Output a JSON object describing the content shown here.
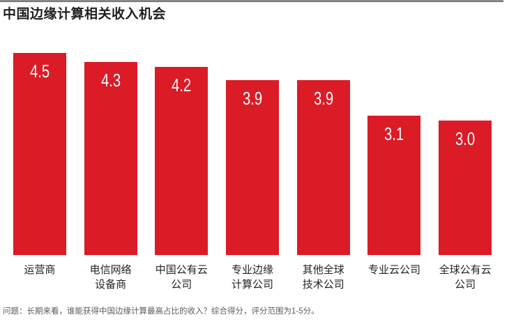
{
  "page": {
    "title": "中国边缘计算相关收入机会",
    "footnote": "问题：长期来看，谁能获得中国边缘计算最高占比的收入？综合得分，评分范围为1-5分。"
  },
  "colors": {
    "bar": "#DB1B26",
    "title_text": "#1f1f1f",
    "category_text": "#222222",
    "footnote_text": "#5c5c5c",
    "value_text": "#ffffff",
    "top_rule": "#8a8a8a"
  },
  "chart_data": {
    "type": "bar",
    "title": "中国边缘计算相关收入机会",
    "categories": [
      "运营商",
      "电信网络设备商",
      "中国公有云公司",
      "专业边缘计算公司",
      "其他全球技术公司",
      "专业云公司",
      "全球公有云公司"
    ],
    "categories_lines": [
      [
        "运营商"
      ],
      [
        "电信网络",
        "设备商"
      ],
      [
        "中国公有云",
        "公司"
      ],
      [
        "专业边缘",
        "计算公司"
      ],
      [
        "其他全球",
        "技术公司"
      ],
      [
        "专业云公司"
      ],
      [
        "全球公有云",
        "公司"
      ]
    ],
    "values": [
      4.5,
      4.3,
      4.2,
      3.9,
      3.9,
      3.1,
      3.0
    ],
    "value_labels": [
      "4.5",
      "4.3",
      "4.2",
      "3.9",
      "3.9",
      "3.1",
      "3.0"
    ],
    "xlabel": "",
    "ylabel": "",
    "ylim": [
      0,
      5
    ],
    "grid": false,
    "legend": false,
    "bar_color": "#DB1B26",
    "value_label_position": "inside-top",
    "footnote": "问题：长期来看，谁能获得中国边缘计算最高占比的收入？综合得分，评分范围为1-5分。"
  }
}
